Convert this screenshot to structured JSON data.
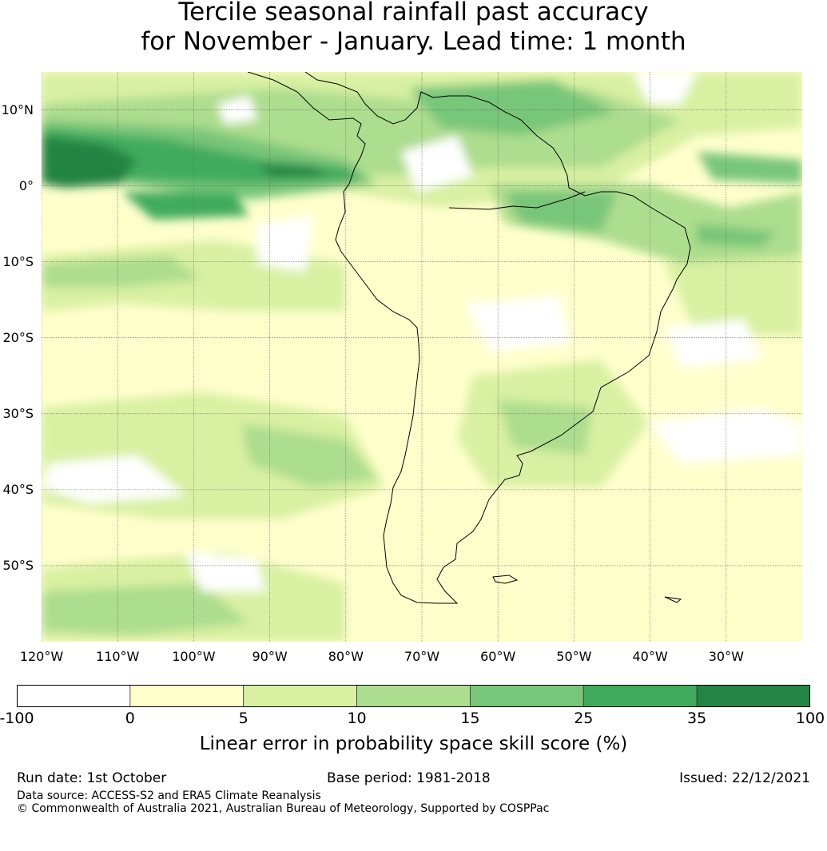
{
  "title_line1": "Tercile seasonal rainfall past accuracy",
  "title_line2": "for November - January. Lead time: 1 month",
  "map": {
    "lat_labels": [
      "10°N",
      "0°",
      "10°S",
      "20°S",
      "30°S",
      "40°S",
      "50°S"
    ],
    "lat_values": [
      10,
      0,
      -10,
      -20,
      -30,
      -40,
      -50
    ],
    "lon_labels": [
      "120°W",
      "110°W",
      "100°W",
      "90°W",
      "80°W",
      "70°W",
      "60°W",
      "50°W",
      "40°W",
      "30°W"
    ],
    "lon_values": [
      -120,
      -110,
      -100,
      -90,
      -80,
      -70,
      -60,
      -50,
      -40,
      -30
    ],
    "extent": {
      "lon_min": -120,
      "lon_max": -20,
      "lat_min": -60,
      "lat_max": 15
    }
  },
  "colorbar": {
    "ticks": [
      "-100",
      "0",
      "5",
      "10",
      "15",
      "25",
      "35",
      "100"
    ],
    "colors": [
      "#ffffff",
      "#ffffcc",
      "#d9f0a3",
      "#addd8e",
      "#78c679",
      "#41ab5d",
      "#238443"
    ],
    "label": "Linear error in probability space skill score (%)"
  },
  "footer": {
    "run_date": "Run date: 1st October",
    "base_period": "Base period: 1981-2018",
    "issued": "Issued: 22/12/2021",
    "data_source": "Data source: ACCESS-S2 and ERA5 Climate Reanalysis",
    "copyright": "© Commonwealth of Australia 2021, Australian Bureau of Meteorology, Supported by COSPPac"
  }
}
